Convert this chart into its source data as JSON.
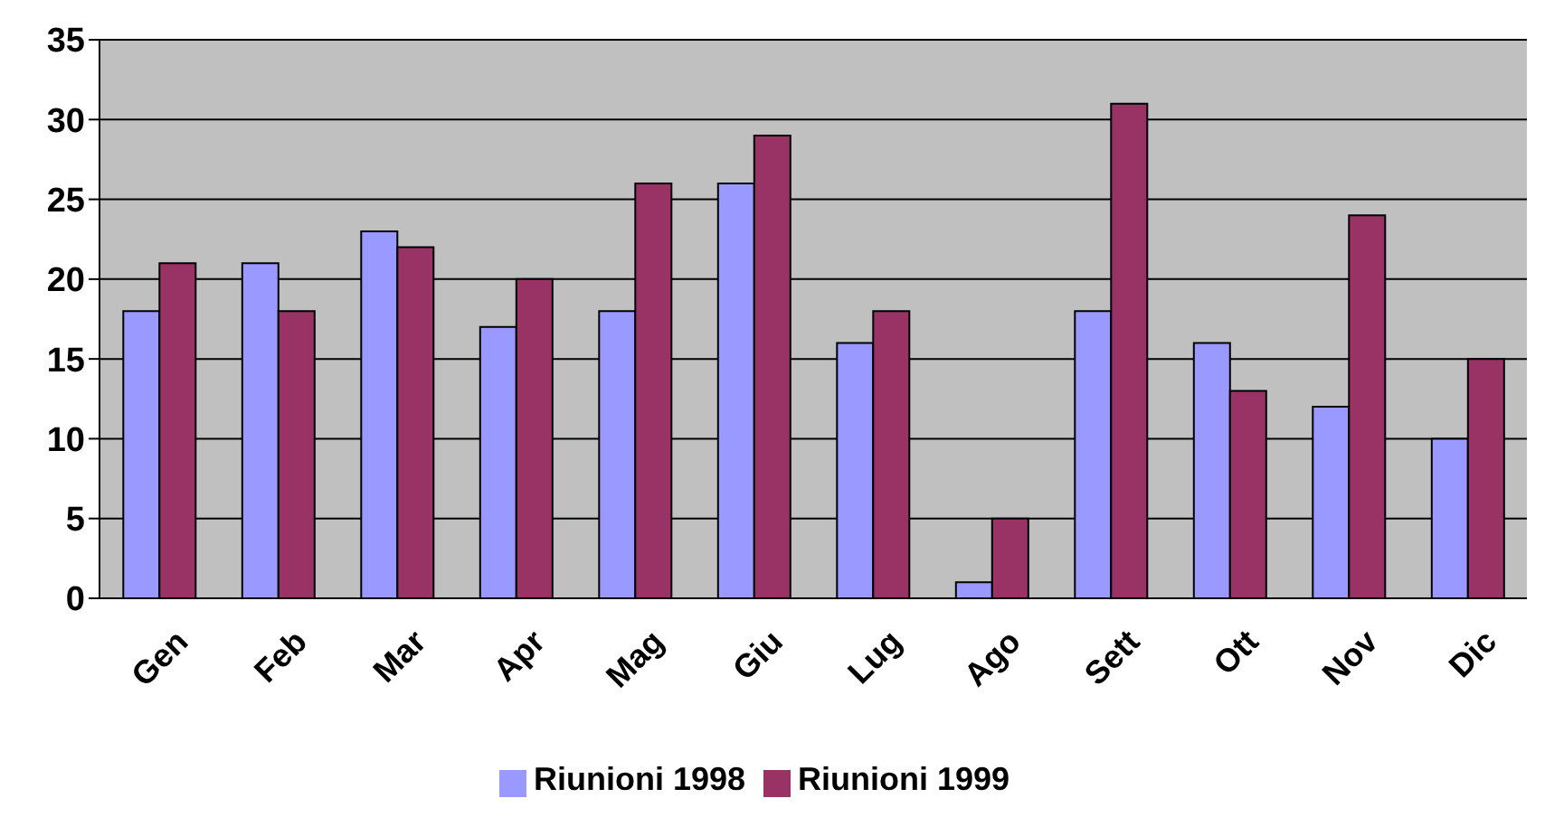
{
  "chart_data": {
    "type": "bar",
    "categories": [
      "Gen",
      "Feb",
      "Mar",
      "Apr",
      "Mag",
      "Giu",
      "Lug",
      "Ago",
      "Sett",
      "Ott",
      "Nov",
      "Dic"
    ],
    "series": [
      {
        "name": "Riunioni 1998",
        "color": "#9999ff",
        "values": [
          18,
          21,
          23,
          17,
          18,
          26,
          16,
          1,
          18,
          16,
          12,
          10
        ]
      },
      {
        "name": "Riunioni 1999",
        "color": "#993366",
        "values": [
          21,
          18,
          22,
          20,
          26,
          29,
          18,
          5,
          31,
          13,
          24,
          15
        ]
      }
    ],
    "ylim": [
      0,
      35
    ],
    "yticks": [
      0,
      5,
      10,
      15,
      20,
      25,
      30,
      35
    ],
    "grid": "y",
    "legend": "bottom"
  }
}
